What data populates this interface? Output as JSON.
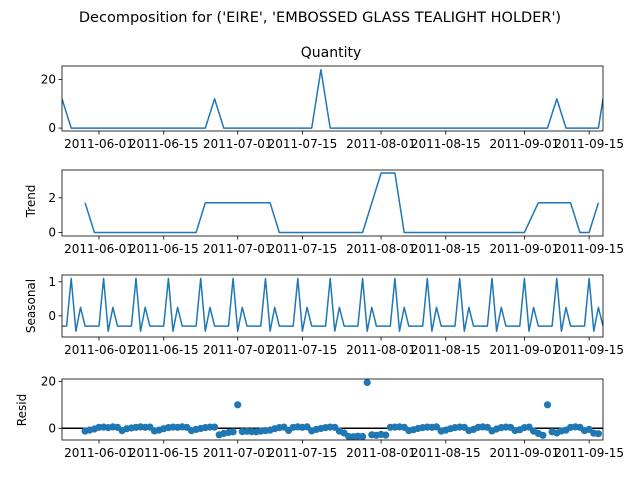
{
  "figure": {
    "suptitle": "Decomposition for ('EIRE', 'EMBOSSED GLASS TEALIGHT HOLDER')",
    "line_color": "#1f77b4",
    "zero_line_color": "#000000"
  },
  "chart_data": [
    {
      "type": "line",
      "title": "Quantity",
      "ylabel": "",
      "xlim": [
        "2011-05-24",
        "2011-09-18"
      ],
      "ylim": [
        -1.2,
        25.5
      ],
      "yticks": [
        0,
        20
      ],
      "x_ticks": [
        "2011-06-01",
        "2011-06-15",
        "2011-07-01",
        "2011-07-15",
        "2011-08-01",
        "2011-08-15",
        "2011-09-01",
        "2011-09-15"
      ],
      "series": [
        {
          "x": [
            "2011-05-24",
            "2011-05-26",
            "2011-06-01",
            "2011-06-05",
            "2011-06-10",
            "2011-06-15",
            "2011-06-20",
            "2011-06-24",
            "2011-06-26",
            "2011-06-28",
            "2011-07-01",
            "2011-07-05",
            "2011-07-10",
            "2011-07-15",
            "2011-07-17",
            "2011-07-19",
            "2011-07-21",
            "2011-07-25",
            "2011-08-01",
            "2011-08-10",
            "2011-08-20",
            "2011-08-30",
            "2011-09-04",
            "2011-09-06",
            "2011-09-08",
            "2011-09-10",
            "2011-09-15",
            "2011-09-17",
            "2011-09-18"
          ],
          "y": [
            12,
            0,
            0,
            0,
            0,
            0,
            0,
            0,
            12,
            0,
            0,
            0,
            0,
            0,
            0,
            24,
            0,
            0,
            0,
            0,
            0,
            0,
            0,
            0,
            12,
            0,
            0,
            0,
            12
          ]
        }
      ]
    },
    {
      "type": "line",
      "title": "",
      "ylabel": "Trend",
      "xlim": [
        "2011-05-24",
        "2011-09-18"
      ],
      "ylim": [
        -0.2,
        3.6
      ],
      "yticks": [
        0,
        2
      ],
      "x_ticks": [
        "2011-06-01",
        "2011-06-15",
        "2011-07-01",
        "2011-07-15",
        "2011-08-01",
        "2011-08-15",
        "2011-09-01",
        "2011-09-15"
      ],
      "series": [
        {
          "x": [
            "2011-05-29",
            "2011-05-31",
            "2011-06-22",
            "2011-06-24",
            "2011-07-08",
            "2011-07-10",
            "2011-07-28",
            "2011-08-01",
            "2011-08-04",
            "2011-08-06",
            "2011-09-01",
            "2011-09-04",
            "2011-09-11",
            "2011-09-13",
            "2011-09-15",
            "2011-09-17"
          ],
          "y": [
            1.71,
            0,
            0,
            1.71,
            1.71,
            0,
            0,
            3.43,
            3.43,
            0,
            0,
            1.71,
            1.71,
            0,
            0,
            1.71
          ]
        }
      ]
    },
    {
      "type": "line",
      "title": "",
      "ylabel": "Seasonal",
      "xlim": [
        "2011-05-24",
        "2011-09-18"
      ],
      "ylim": [
        -0.62,
        1.2
      ],
      "yticks": [
        0,
        1
      ],
      "x_ticks": [
        "2011-06-01",
        "2011-06-15",
        "2011-07-01",
        "2011-07-15",
        "2011-08-01",
        "2011-08-15",
        "2011-09-01",
        "2011-09-15"
      ],
      "seasonal_pattern": [
        1.1,
        -0.45,
        0.25,
        -0.3,
        -0.3,
        -0.3,
        -0.3
      ],
      "pattern_start": "2011-05-26"
    },
    {
      "type": "scatter",
      "title": "",
      "ylabel": "Resid",
      "xlim": [
        "2011-05-24",
        "2011-09-18"
      ],
      "ylim": [
        -5,
        21
      ],
      "yticks": [
        0,
        20
      ],
      "x_ticks": [
        "2011-06-01",
        "2011-06-15",
        "2011-07-01",
        "2011-07-15",
        "2011-08-01",
        "2011-08-15",
        "2011-09-01",
        "2011-09-15"
      ],
      "zero_line": true,
      "series": [
        {
          "x": [
            "2011-05-29",
            "2011-05-30",
            "2011-05-31",
            "2011-06-01",
            "2011-06-02",
            "2011-06-03",
            "2011-06-04",
            "2011-06-05",
            "2011-06-06",
            "2011-06-07",
            "2011-06-08",
            "2011-06-09",
            "2011-06-10",
            "2011-06-11",
            "2011-06-12",
            "2011-06-13",
            "2011-06-14",
            "2011-06-15",
            "2011-06-16",
            "2011-06-17",
            "2011-06-18",
            "2011-06-19",
            "2011-06-20",
            "2011-06-21",
            "2011-06-22",
            "2011-06-23",
            "2011-06-24",
            "2011-06-25",
            "2011-06-26",
            "2011-06-27",
            "2011-06-28",
            "2011-06-29",
            "2011-06-30",
            "2011-07-01",
            "2011-07-02",
            "2011-07-03",
            "2011-07-04",
            "2011-07-05",
            "2011-07-06",
            "2011-07-07",
            "2011-07-08",
            "2011-07-09",
            "2011-07-10",
            "2011-07-11",
            "2011-07-12",
            "2011-07-13",
            "2011-07-14",
            "2011-07-15",
            "2011-07-16",
            "2011-07-17",
            "2011-07-18",
            "2011-07-19",
            "2011-07-20",
            "2011-07-21",
            "2011-07-22",
            "2011-07-23",
            "2011-07-24",
            "2011-07-25",
            "2011-07-26",
            "2011-07-27",
            "2011-07-28",
            "2011-07-29",
            "2011-07-30",
            "2011-07-31",
            "2011-08-01",
            "2011-08-02",
            "2011-08-03",
            "2011-08-04",
            "2011-08-05",
            "2011-08-06",
            "2011-08-07",
            "2011-08-08",
            "2011-08-09",
            "2011-08-10",
            "2011-08-11",
            "2011-08-12",
            "2011-08-13",
            "2011-08-14",
            "2011-08-15",
            "2011-08-16",
            "2011-08-17",
            "2011-08-18",
            "2011-08-19",
            "2011-08-20",
            "2011-08-21",
            "2011-08-22",
            "2011-08-23",
            "2011-08-24",
            "2011-08-25",
            "2011-08-26",
            "2011-08-27",
            "2011-08-28",
            "2011-08-29",
            "2011-08-30",
            "2011-08-31",
            "2011-09-01",
            "2011-09-02",
            "2011-09-03",
            "2011-09-04",
            "2011-09-05",
            "2011-09-06",
            "2011-09-07",
            "2011-09-08",
            "2011-09-09",
            "2011-09-10",
            "2011-09-11",
            "2011-09-12",
            "2011-09-13",
            "2011-09-14",
            "2011-09-15",
            "2011-09-16",
            "2011-09-17"
          ],
          "y": [
            -1.2,
            -0.8,
            -0.3,
            0.4,
            0.5,
            0.3,
            0.6,
            0.4,
            -1.0,
            -0.2,
            0.1,
            0.4,
            0.6,
            0.4,
            0.5,
            -1.1,
            -0.8,
            -0.2,
            0.3,
            0.5,
            0.4,
            0.6,
            0.4,
            -1.0,
            -0.5,
            -0.1,
            0.3,
            0.5,
            0.5,
            -2.8,
            -2.2,
            -1.8,
            -1.5,
            10.0,
            -1.4,
            -1.3,
            -1.4,
            -1.5,
            -1.2,
            -1.0,
            -0.8,
            -0.2,
            0.3,
            0.5,
            -0.9,
            0.4,
            0.6,
            0.4,
            0.6,
            -1.1,
            -0.5,
            -0.1,
            0.3,
            0.5,
            0.4,
            -1.2,
            -2.0,
            -3.5,
            -3.6,
            -3.4,
            -3.5,
            19.5,
            -2.8,
            -3.0,
            -2.6,
            -2.9,
            0.4,
            0.5,
            0.6,
            0.4,
            -1.0,
            -0.6,
            -0.1,
            0.3,
            0.5,
            0.4,
            0.6,
            -1.2,
            -0.8,
            -0.2,
            0.3,
            0.5,
            0.4,
            -1.0,
            -0.5,
            0.4,
            0.6,
            0.4,
            -1.1,
            -0.3,
            0.3,
            0.5,
            0.4,
            -1.0,
            -0.6,
            0.3,
            0.5,
            -1.2,
            -2.2,
            -3.0,
            10.0,
            -1.5,
            -2.0,
            -1.1,
            -0.8,
            0.4,
            0.6,
            0.4,
            -1.0,
            -0.5,
            -2.1,
            -2.3
          ]
        }
      ]
    }
  ]
}
